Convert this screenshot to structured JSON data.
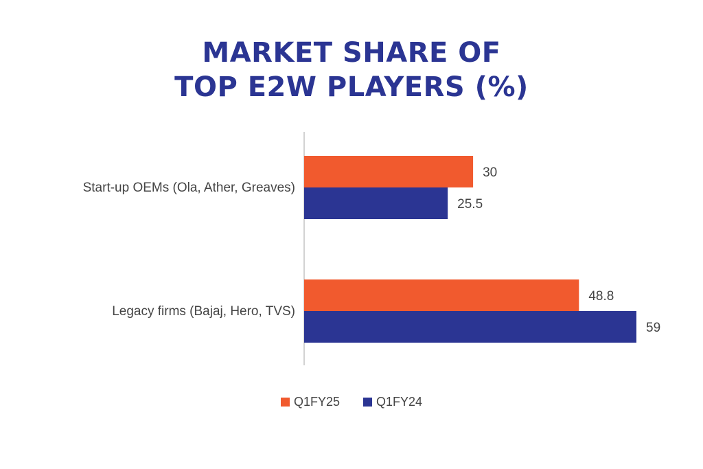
{
  "chart_data": {
    "type": "bar",
    "orientation": "horizontal",
    "title": [
      "MARKET SHARE OF",
      "TOP E2W PLAYERS (%)"
    ],
    "categories": [
      "Start-up OEMs (Ola, Ather, Greaves)",
      "Legacy firms (Bajaj, Hero, TVS)"
    ],
    "series": [
      {
        "name": "Q1FY25",
        "color": "#f15a2e",
        "values": [
          30,
          48.8
        ]
      },
      {
        "name": "Q1FY24",
        "color": "#2b3593",
        "values": [
          25.5,
          59
        ]
      }
    ],
    "xlim": [
      0,
      60
    ],
    "grid": false,
    "legend_position": "bottom"
  }
}
